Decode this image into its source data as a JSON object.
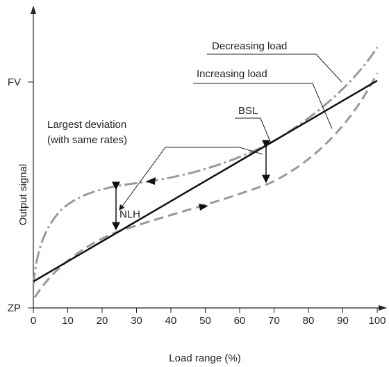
{
  "axes": {
    "x_label": "Load range (%)",
    "y_label": "Output signal",
    "x_ticks": [
      "0",
      "10",
      "20",
      "30",
      "40",
      "50",
      "60",
      "70",
      "80",
      "90",
      "100"
    ],
    "y_ticks": [
      "ZP",
      "FV"
    ]
  },
  "labels": {
    "decreasing": "Decreasing load",
    "increasing": "Increasing load",
    "bsl": "BSL",
    "deviation": [
      "Largest deviation",
      "(with same rates)"
    ],
    "nlh": "NLH"
  }
}
